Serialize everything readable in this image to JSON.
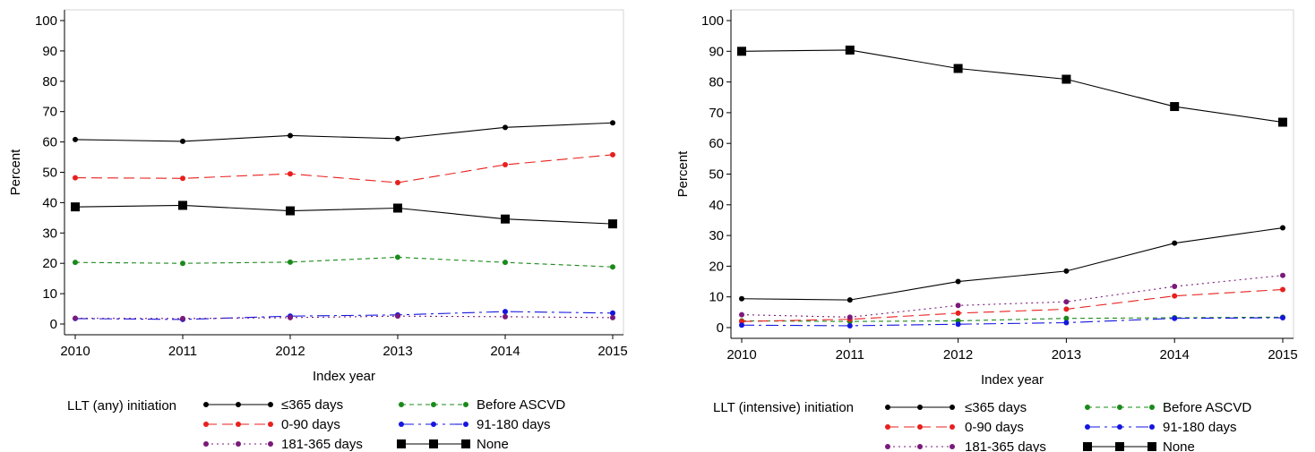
{
  "chart_data": [
    {
      "type": "line",
      "xlabel": "Index year",
      "ylabel": "Percent",
      "ylim": [
        0,
        100
      ],
      "yticks": [
        0,
        10,
        20,
        30,
        40,
        50,
        60,
        70,
        80,
        90,
        100
      ],
      "x": [
        2010,
        2011,
        2012,
        2013,
        2014,
        2015
      ],
      "grid": false,
      "legend_title": "LLT (any) initiation",
      "legend_position": "bottom",
      "series": [
        {
          "name": "≤365  days",
          "color": "#000000",
          "marker": "circle",
          "dash": "solid",
          "values": [
            60.8,
            60.2,
            62.1,
            61.1,
            64.8,
            66.3
          ]
        },
        {
          "name": "Before ASCVD",
          "color": "#1a8a1a",
          "marker": "circle",
          "dash": "dashed",
          "values": [
            20.3,
            20.0,
            20.4,
            22.0,
            20.3,
            18.8
          ]
        },
        {
          "name": "0-90 days",
          "color": "#e8201e",
          "marker": "circle",
          "dash": "longdash",
          "values": [
            48.2,
            48.0,
            49.5,
            46.6,
            52.5,
            55.8
          ]
        },
        {
          "name": "91-180 days",
          "color": "#1515e0",
          "marker": "circle",
          "dash": "dashdot",
          "values": [
            1.8,
            1.5,
            2.6,
            3.0,
            4.1,
            3.6
          ]
        },
        {
          "name": "181-365 days",
          "color": "#7a1a7a",
          "marker": "circle",
          "dash": "dotted",
          "values": [
            1.9,
            1.8,
            2.1,
            2.6,
            2.4,
            2.1
          ]
        },
        {
          "name": "None",
          "color": "#000000",
          "marker": "square",
          "dash": "solid",
          "values": [
            38.6,
            39.1,
            37.3,
            38.2,
            34.6,
            33.0
          ]
        }
      ]
    },
    {
      "type": "line",
      "xlabel": "Index year",
      "ylabel": "Percent",
      "ylim": [
        0,
        100
      ],
      "yticks": [
        0,
        10,
        20,
        30,
        40,
        50,
        60,
        70,
        80,
        90,
        100
      ],
      "x": [
        2010,
        2011,
        2012,
        2013,
        2014,
        2015
      ],
      "grid": false,
      "legend_title": "LLT (intensive) initiation",
      "legend_position": "bottom",
      "series": [
        {
          "name": "≤365  days",
          "color": "#000000",
          "marker": "circle",
          "dash": "solid",
          "values": [
            9.4,
            9.0,
            15.0,
            18.4,
            27.5,
            32.5
          ]
        },
        {
          "name": "Before ASCVD",
          "color": "#1a8a1a",
          "marker": "circle",
          "dash": "dashed",
          "values": [
            2.2,
            2.0,
            2.2,
            3.0,
            3.2,
            3.4
          ]
        },
        {
          "name": "0-90 days",
          "color": "#e8201e",
          "marker": "circle",
          "dash": "longdash",
          "values": [
            2.0,
            2.7,
            4.7,
            6.0,
            10.3,
            12.4
          ]
        },
        {
          "name": "91-180 days",
          "color": "#1515e0",
          "marker": "circle",
          "dash": "dashdot",
          "values": [
            0.8,
            0.6,
            1.1,
            1.6,
            3.0,
            3.2
          ]
        },
        {
          "name": "181-365 days",
          "color": "#7a1a7a",
          "marker": "circle",
          "dash": "dotted",
          "values": [
            4.2,
            3.4,
            7.2,
            8.4,
            13.4,
            17.0
          ]
        },
        {
          "name": "None",
          "color": "#000000",
          "marker": "square",
          "dash": "solid",
          "values": [
            90.0,
            90.4,
            84.4,
            80.9,
            72.0,
            66.9
          ]
        }
      ]
    }
  ]
}
